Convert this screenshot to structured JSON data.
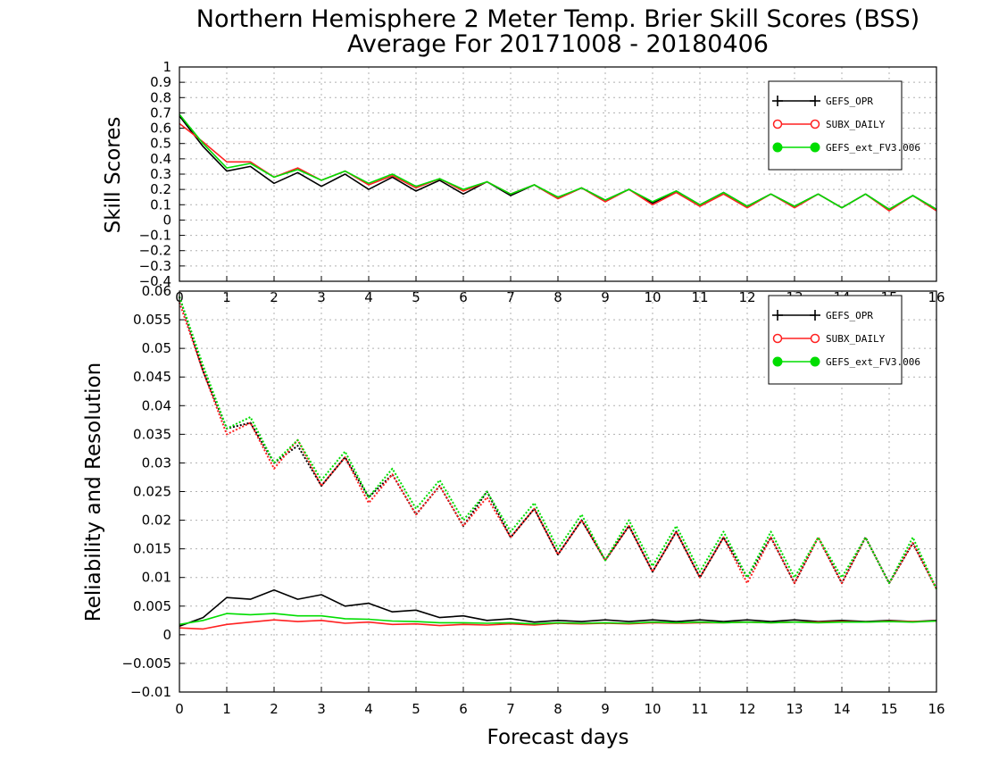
{
  "title_line1": "Northern Hemisphere 2 Meter Temp. Brier Skill Scores (BSS)",
  "title_line2": "Average For 20171008 - 20180406",
  "xlabel": "Forecast days",
  "chart_data": [
    {
      "type": "line",
      "panel": "top",
      "ylabel": "Skill Scores",
      "xlim": [
        0,
        16
      ],
      "ylim": [
        -0.4,
        1
      ],
      "xticks": [
        0,
        1,
        2,
        3,
        4,
        5,
        6,
        7,
        8,
        9,
        10,
        11,
        12,
        13,
        14,
        15,
        16
      ],
      "yticks": [
        -0.4,
        -0.3,
        -0.2,
        -0.1,
        0,
        0.1,
        0.2,
        0.3,
        0.4,
        0.5,
        0.6,
        0.7,
        0.8,
        0.9,
        1
      ],
      "grid": true,
      "legend_position": "top-right",
      "x": [
        0,
        0.5,
        1,
        1.5,
        2,
        2.5,
        3,
        3.5,
        4,
        4.5,
        5,
        5.5,
        6,
        6.5,
        7,
        7.5,
        8,
        8.5,
        9,
        9.5,
        10,
        10.5,
        11,
        11.5,
        12,
        12.5,
        13,
        13.5,
        14,
        14.5,
        15,
        15.5,
        16
      ],
      "series": [
        {
          "name": "GEFS_OPR",
          "color": "#000000",
          "style": "solid",
          "values": [
            0.68,
            0.48,
            0.32,
            0.35,
            0.24,
            0.31,
            0.22,
            0.3,
            0.2,
            0.28,
            0.19,
            0.26,
            0.17,
            0.25,
            0.16,
            0.23,
            0.14,
            0.21,
            0.13,
            0.2,
            0.11,
            0.19,
            0.1,
            0.18,
            0.09,
            0.17,
            0.09,
            0.17,
            0.08,
            0.17,
            0.07,
            0.16,
            0.07
          ]
        },
        {
          "name": "SUBX_DAILY",
          "color": "#ff2020",
          "style": "solid",
          "values": [
            0.63,
            0.51,
            0.38,
            0.38,
            0.28,
            0.34,
            0.26,
            0.32,
            0.23,
            0.29,
            0.21,
            0.27,
            0.19,
            0.25,
            0.17,
            0.23,
            0.14,
            0.21,
            0.12,
            0.2,
            0.1,
            0.18,
            0.09,
            0.17,
            0.08,
            0.17,
            0.08,
            0.17,
            0.08,
            0.17,
            0.06,
            0.16,
            0.06
          ]
        },
        {
          "name": "GEFS_ext_FV3.006",
          "color": "#00dd00",
          "style": "solid",
          "values": [
            0.69,
            0.5,
            0.34,
            0.37,
            0.28,
            0.33,
            0.26,
            0.32,
            0.24,
            0.3,
            0.22,
            0.27,
            0.2,
            0.25,
            0.17,
            0.23,
            0.15,
            0.21,
            0.13,
            0.2,
            0.12,
            0.19,
            0.1,
            0.18,
            0.09,
            0.17,
            0.09,
            0.17,
            0.08,
            0.17,
            0.07,
            0.16,
            0.07
          ]
        }
      ]
    },
    {
      "type": "line",
      "panel": "bottom",
      "ylabel": "Reliability and Resolution",
      "xlim": [
        0,
        16
      ],
      "ylim": [
        -0.01,
        0.06
      ],
      "xticks": [
        0,
        1,
        2,
        3,
        4,
        5,
        6,
        7,
        8,
        9,
        10,
        11,
        12,
        13,
        14,
        15,
        16
      ],
      "yticks": [
        -0.01,
        -0.005,
        0,
        0.005,
        0.01,
        0.015,
        0.02,
        0.025,
        0.03,
        0.035,
        0.04,
        0.045,
        0.05,
        0.055,
        0.06
      ],
      "ytick_labels": [
        "−0.01",
        "−0.005",
        "0",
        "0.005",
        "0.01",
        "0.015",
        "0.02",
        "0.025",
        "0.03",
        "0.035",
        "0.04",
        "0.045",
        "0.05",
        "0.055",
        "0.06"
      ],
      "grid": true,
      "legend_position": "top-right",
      "x": [
        0,
        0.5,
        1,
        1.5,
        2,
        2.5,
        3,
        3.5,
        4,
        4.5,
        5,
        5.5,
        6,
        6.5,
        7,
        7.5,
        8,
        8.5,
        9,
        9.5,
        10,
        10.5,
        11,
        11.5,
        12,
        12.5,
        13,
        13.5,
        14,
        14.5,
        15,
        15.5,
        16
      ],
      "series": [
        {
          "name": "GEFS_OPR resolution",
          "color": "#000000",
          "style": "dotted",
          "values": [
            0.059,
            0.046,
            0.036,
            0.037,
            0.03,
            0.033,
            0.026,
            0.031,
            0.024,
            0.028,
            0.021,
            0.026,
            0.019,
            0.025,
            0.017,
            0.022,
            0.014,
            0.02,
            0.013,
            0.019,
            0.011,
            0.018,
            0.01,
            0.017,
            0.01,
            0.017,
            0.009,
            0.017,
            0.009,
            0.017,
            0.009,
            0.016,
            0.008
          ]
        },
        {
          "name": "SUBX_DAILY resolution",
          "color": "#ff2020",
          "style": "dotted",
          "values": [
            0.058,
            0.046,
            0.035,
            0.037,
            0.029,
            0.034,
            0.026,
            0.031,
            0.023,
            0.028,
            0.021,
            0.026,
            0.019,
            0.024,
            0.017,
            0.022,
            0.014,
            0.02,
            0.013,
            0.019,
            0.011,
            0.018,
            0.01,
            0.017,
            0.009,
            0.017,
            0.009,
            0.017,
            0.009,
            0.017,
            0.009,
            0.016,
            0.008
          ]
        },
        {
          "name": "GEFS_ext_FV3.006 resolution",
          "color": "#00dd00",
          "style": "dotted",
          "values": [
            0.059,
            0.047,
            0.036,
            0.038,
            0.03,
            0.034,
            0.027,
            0.032,
            0.024,
            0.029,
            0.022,
            0.027,
            0.02,
            0.025,
            0.018,
            0.023,
            0.015,
            0.021,
            0.013,
            0.02,
            0.012,
            0.019,
            0.011,
            0.018,
            0.01,
            0.018,
            0.01,
            0.017,
            0.01,
            0.017,
            0.009,
            0.017,
            0.008
          ]
        },
        {
          "name": "GEFS_OPR reliability",
          "color": "#000000",
          "style": "solid",
          "values": [
            0.0015,
            0.003,
            0.0065,
            0.0062,
            0.0078,
            0.0062,
            0.007,
            0.005,
            0.0055,
            0.004,
            0.0043,
            0.003,
            0.0033,
            0.0025,
            0.0028,
            0.0022,
            0.0025,
            0.0023,
            0.0026,
            0.0023,
            0.0026,
            0.0023,
            0.0026,
            0.0023,
            0.0026,
            0.0023,
            0.0026,
            0.0023,
            0.0025,
            0.0023,
            0.0025,
            0.0023,
            0.0025
          ]
        },
        {
          "name": "SUBX_DAILY reliability",
          "color": "#ff2020",
          "style": "solid",
          "values": [
            0.0012,
            0.001,
            0.0018,
            0.0022,
            0.0026,
            0.0023,
            0.0025,
            0.002,
            0.0022,
            0.0018,
            0.0019,
            0.0016,
            0.0018,
            0.0017,
            0.0019,
            0.0017,
            0.002,
            0.0019,
            0.002,
            0.0019,
            0.0021,
            0.002,
            0.0021,
            0.0021,
            0.0022,
            0.0021,
            0.0022,
            0.0022,
            0.0023,
            0.0022,
            0.0024,
            0.0023,
            0.0024
          ]
        },
        {
          "name": "GEFS_ext_FV3.006 reliability",
          "color": "#00dd00",
          "style": "solid",
          "values": [
            0.0018,
            0.0025,
            0.0037,
            0.0035,
            0.0037,
            0.0033,
            0.0033,
            0.0028,
            0.0027,
            0.0024,
            0.0023,
            0.0021,
            0.0021,
            0.002,
            0.0021,
            0.0019,
            0.0021,
            0.002,
            0.0021,
            0.002,
            0.0022,
            0.0021,
            0.0022,
            0.0021,
            0.0022,
            0.0021,
            0.0022,
            0.0021,
            0.0022,
            0.0022,
            0.0023,
            0.0022,
            0.0024
          ]
        }
      ],
      "legend": [
        {
          "name": "GEFS_OPR",
          "color": "#000000"
        },
        {
          "name": "SUBX_DAILY",
          "color": "#ff2020"
        },
        {
          "name": "GEFS_ext_FV3.006",
          "color": "#00dd00"
        }
      ]
    }
  ]
}
